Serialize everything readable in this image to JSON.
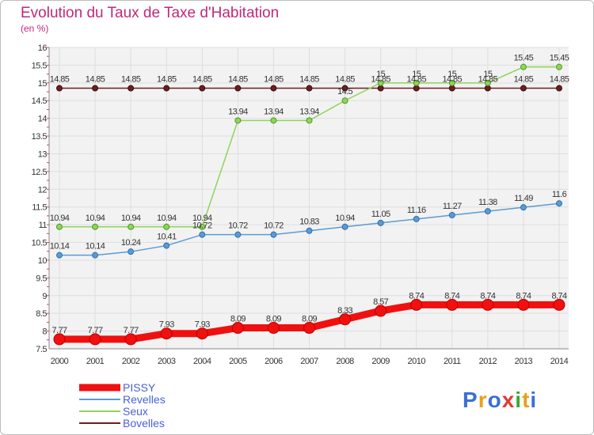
{
  "title": "Evolution du Taux de Taxe d'Habitation",
  "unit": "(en %)",
  "logo": {
    "text": "Proxiti",
    "letter_colors": [
      "#3a6fd8",
      "#e8a020",
      "#3a6fd8",
      "#e53935",
      "#39a935",
      "#e8a020",
      "#3a6fd8"
    ]
  },
  "chart_data": {
    "type": "line",
    "x": [
      "2000",
      "2001",
      "2002",
      "2003",
      "2004",
      "2005",
      "2006",
      "2007",
      "2008",
      "2009",
      "2010",
      "2011",
      "2012",
      "2013",
      "2014"
    ],
    "ylim": [
      7.5,
      16
    ],
    "yticks": [
      "7.5",
      "8",
      "8.5",
      "9",
      "9.5",
      "10",
      "10.5",
      "11",
      "11.5",
      "12",
      "12.5",
      "13",
      "13.5",
      "14",
      "14.5",
      "15",
      "15.5",
      "16"
    ],
    "grid": true,
    "legend_position": "bottom-left",
    "series": [
      {
        "name": "PISSY",
        "color": "#f01010",
        "values": [
          7.77,
          7.77,
          7.77,
          7.93,
          7.93,
          8.09,
          8.09,
          8.09,
          8.33,
          8.57,
          8.74,
          8.74,
          8.74,
          8.74,
          8.74
        ],
        "labels": [
          "7.77",
          "7.77",
          "7.77",
          "7.93",
          "7.93",
          "8.09",
          "8.09",
          "8.09",
          "8.33",
          "8.57",
          "8.74",
          "8.74",
          "8.74",
          "8.74",
          "8.74"
        ]
      },
      {
        "name": "Revelles",
        "color": "#5b9bd5",
        "values": [
          10.14,
          10.14,
          10.24,
          10.41,
          10.72,
          10.72,
          10.72,
          10.83,
          10.94,
          11.05,
          11.16,
          11.27,
          11.38,
          11.49,
          11.6
        ],
        "labels": [
          "10.14",
          "10.14",
          "10.24",
          "10.41",
          "10.72",
          "10.72",
          "10.72",
          "10.83",
          "10.94",
          "11.05",
          "11.16",
          "11.27",
          "11.38",
          "11.49",
          "11.6"
        ]
      },
      {
        "name": "Seux",
        "color": "#8fd45a",
        "values": [
          10.94,
          10.94,
          10.94,
          10.94,
          10.94,
          13.94,
          13.94,
          13.94,
          14.5,
          15,
          15,
          15,
          15,
          15.45,
          15.45
        ],
        "labels": [
          "10.94",
          "10.94",
          "10.94",
          "10.94",
          "10.94",
          "13.94",
          "13.94",
          "13.94",
          "14.5",
          "15",
          "15",
          "15",
          "15",
          "15.45",
          "15.45"
        ]
      },
      {
        "name": "Bovelles",
        "color": "#6b1f1f",
        "values": [
          14.85,
          14.85,
          14.85,
          14.85,
          14.85,
          14.85,
          14.85,
          14.85,
          14.85,
          14.85,
          14.85,
          14.85,
          14.85,
          14.85,
          14.85
        ],
        "labels": [
          "14.85",
          "14.85",
          "14.85",
          "14.85",
          "14.85",
          "14.85",
          "14.85",
          "14.85",
          "14.85",
          "14.85",
          "14.85",
          "14.85",
          "14.85",
          "14.85",
          "14.85"
        ]
      }
    ]
  }
}
